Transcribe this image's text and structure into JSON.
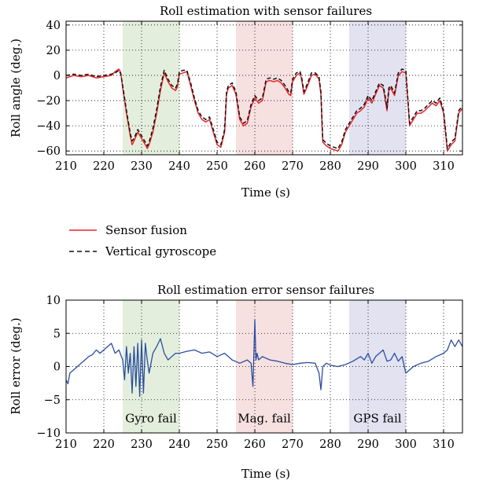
{
  "chart_data": [
    {
      "type": "line",
      "title": "Roll estimation with sensor failures",
      "xlabel": "Time (s)",
      "ylabel": "Roll angle (deg.)",
      "xlim": [
        210,
        315
      ],
      "ylim": [
        -63,
        43
      ],
      "xticks": [
        210,
        220,
        230,
        240,
        250,
        260,
        270,
        280,
        290,
        300,
        310
      ],
      "xtick_labels": [
        "210",
        "220",
        "230",
        "240",
        "250",
        "260",
        "270",
        "280",
        "290",
        "300",
        "310"
      ],
      "yticks": [
        40,
        20,
        0,
        -20,
        -40,
        -60
      ],
      "ytick_labels": [
        "40",
        "20",
        "0",
        "−20",
        "−40",
        "−60"
      ],
      "grid": true,
      "shaded_regions": [
        {
          "x0": 225,
          "x1": 240,
          "color": "#e3efdc"
        },
        {
          "x0": 255,
          "x1": 270,
          "color": "#f7e0e0"
        },
        {
          "x0": 285,
          "x1": 300,
          "color": "#e2e2f1"
        }
      ],
      "series": [
        {
          "name": "Sensor fusion",
          "color": "#e8242a",
          "dash": "solid",
          "x": [
            210,
            212,
            214,
            216,
            218,
            220,
            222,
            223,
            224,
            224.5,
            225,
            226,
            227,
            227.5,
            228,
            229,
            230,
            231,
            231.5,
            232,
            233,
            234,
            235,
            236,
            237,
            238,
            239,
            239.5,
            240,
            241,
            242,
            243,
            244,
            245,
            246,
            247,
            248,
            249,
            250,
            251,
            252,
            252.5,
            253,
            254,
            255,
            256,
            257,
            258,
            259,
            260,
            261,
            262,
            263,
            264,
            265,
            266,
            267,
            268,
            269,
            269.5,
            270,
            271,
            272,
            272.5,
            273,
            274,
            275,
            276,
            277,
            277.5,
            278,
            279,
            280,
            281,
            282,
            283,
            284,
            285,
            286,
            287,
            288,
            289,
            290,
            291,
            292,
            293,
            294,
            294.5,
            295,
            295.5,
            296,
            297,
            298,
            299,
            300,
            301,
            302,
            303,
            304,
            305,
            306,
            307,
            308,
            309,
            310,
            311,
            312,
            313,
            314,
            315
          ],
          "y": [
            -2,
            0,
            -1,
            0,
            -2,
            -1,
            0,
            3,
            5,
            2,
            -10,
            -30,
            -48,
            -55,
            -52,
            -45,
            -50,
            -55,
            -58,
            -55,
            -45,
            -30,
            -12,
            2,
            -5,
            -10,
            -12,
            -9,
            1,
            2,
            3,
            -8,
            -20,
            -30,
            -35,
            -37,
            -35,
            -45,
            -55,
            -57,
            -45,
            -15,
            -10,
            -8,
            -15,
            -35,
            -40,
            -38,
            -25,
            -18,
            -22,
            -20,
            -5,
            -4,
            -5,
            -4,
            -6,
            -10,
            -15,
            -16,
            -5,
            0,
            2,
            -5,
            -15,
            -8,
            0,
            1,
            -3,
            -15,
            -53,
            -56,
            -58,
            -59,
            -60,
            -55,
            -45,
            -40,
            -35,
            -30,
            -28,
            -25,
            -18,
            -22,
            -15,
            -8,
            -10,
            -18,
            -28,
            -12,
            -10,
            -16,
            0,
            3,
            2,
            -40,
            -35,
            -30,
            -30,
            -28,
            -25,
            -22,
            -24,
            -20,
            -30,
            -60,
            -55,
            -52,
            -30,
            -26
          ]
        },
        {
          "name": "Vertical gyroscope",
          "color": "#111111",
          "dash": "dashed",
          "x": [
            210,
            212,
            214,
            216,
            218,
            220,
            222,
            223,
            224,
            224.5,
            225,
            226,
            227,
            227.5,
            228,
            229,
            230,
            231,
            231.5,
            232,
            233,
            234,
            235,
            236,
            237,
            238,
            239,
            239.5,
            240,
            241,
            242,
            243,
            244,
            245,
            246,
            247,
            248,
            249,
            250,
            251,
            252,
            252.5,
            253,
            254,
            255,
            256,
            257,
            258,
            259,
            260,
            261,
            262,
            263,
            264,
            265,
            266,
            267,
            268,
            269,
            269.5,
            270,
            271,
            272,
            272.5,
            273,
            274,
            275,
            276,
            277,
            277.5,
            278,
            279,
            280,
            281,
            282,
            283,
            284,
            285,
            286,
            287,
            288,
            289,
            290,
            291,
            292,
            293,
            294,
            294.5,
            295,
            295.5,
            296,
            297,
            298,
            299,
            300,
            301,
            302,
            303,
            304,
            305,
            306,
            307,
            308,
            309,
            310,
            311,
            312,
            313,
            314,
            315
          ],
          "y": [
            0,
            1,
            0,
            1,
            -1,
            0,
            1,
            2,
            4,
            1,
            -8,
            -28,
            -46,
            -52,
            -50,
            -43,
            -48,
            -53,
            -56,
            -53,
            -42,
            -27,
            -9,
            4,
            -3,
            -8,
            -10,
            -7,
            3,
            4,
            4,
            -6,
            -18,
            -28,
            -33,
            -35,
            -33,
            -43,
            -53,
            -55,
            -43,
            -13,
            -8,
            -6,
            -13,
            -33,
            -38,
            -36,
            -23,
            -16,
            -20,
            -18,
            -3,
            -2,
            -3,
            -2,
            -4,
            -8,
            -13,
            -14,
            -3,
            2,
            3,
            -3,
            -13,
            -6,
            2,
            2,
            -1,
            -13,
            -51,
            -54,
            -56,
            -57,
            -58,
            -53,
            -43,
            -38,
            -33,
            -28,
            -26,
            -23,
            -16,
            -20,
            -13,
            -6,
            -8,
            -16,
            -26,
            -10,
            -8,
            -14,
            2,
            5,
            4,
            -38,
            -33,
            -28,
            -28,
            -26,
            -23,
            -20,
            -22,
            -18,
            -28,
            -58,
            -53,
            -50,
            -28,
            -24
          ]
        }
      ]
    },
    {
      "type": "line",
      "title": "Roll estimation error sensor failures",
      "xlabel": "Time (s)",
      "ylabel": "Roll error (deg.)",
      "xlim": [
        210,
        315
      ],
      "ylim": [
        -10,
        10
      ],
      "xticks": [
        210,
        220,
        230,
        240,
        250,
        260,
        270,
        280,
        290,
        300,
        310
      ],
      "xtick_labels": [
        "210",
        "220",
        "230",
        "240",
        "250",
        "260",
        "270",
        "280",
        "290",
        "300",
        "310"
      ],
      "yticks": [
        10,
        5,
        0,
        -5,
        -10
      ],
      "ytick_labels": [
        "10",
        "5",
        "0",
        "−5",
        "−10"
      ],
      "grid": true,
      "shaded_regions": [
        {
          "x0": 225,
          "x1": 240,
          "color": "#e3efdc"
        },
        {
          "x0": 255,
          "x1": 270,
          "color": "#f7e0e0"
        },
        {
          "x0": 285,
          "x1": 300,
          "color": "#e2e2f1"
        }
      ],
      "annotations": [
        {
          "text": "Gyro fail",
          "x": 232.5,
          "y": -7.8
        },
        {
          "text": "Mag. fail",
          "x": 262.5,
          "y": -7.8
        },
        {
          "text": "GPS fail",
          "x": 292.5,
          "y": -7.8
        }
      ],
      "series": [
        {
          "name": "Sensor fusion",
          "color": "#2a4ea0",
          "dash": "solid",
          "x": [
            210,
            210.5,
            211,
            212,
            213,
            214,
            215,
            216,
            217,
            218,
            219,
            220,
            221,
            222,
            223,
            224,
            225,
            225.5,
            226,
            226.5,
            227,
            227.5,
            228,
            228.5,
            229,
            229.5,
            230,
            230.5,
            231,
            231.5,
            232,
            233,
            234,
            235,
            236,
            237,
            238,
            239,
            240,
            242,
            244,
            246,
            248,
            250,
            252,
            254,
            256,
            258,
            259,
            259.5,
            260,
            260.3,
            260.6,
            261,
            262,
            264,
            266,
            268,
            270,
            272,
            274,
            276,
            277,
            277.5,
            278,
            279,
            280,
            282,
            284,
            286,
            288,
            289,
            290,
            291,
            292,
            294,
            295,
            296,
            297,
            298,
            299,
            300,
            302,
            304,
            306,
            308,
            310,
            311,
            312,
            313,
            314,
            315
          ],
          "y": [
            -2,
            -2.6,
            -1,
            -0.5,
            0,
            0.5,
            1,
            1.5,
            1.8,
            2.5,
            2,
            2.5,
            3,
            3.5,
            2,
            2.5,
            1,
            -2,
            3,
            -1,
            2,
            -4,
            3,
            -3,
            3.5,
            -4.5,
            4,
            -4,
            3.5,
            1,
            -1,
            2,
            3,
            4.2,
            2,
            1,
            1.5,
            2,
            2,
            2.3,
            2.5,
            2,
            2.2,
            1.5,
            2,
            1,
            0.5,
            1,
            0.5,
            -3,
            7,
            1,
            2,
            1,
            1.5,
            1,
            0.8,
            0.5,
            0.3,
            0.5,
            0.6,
            0.5,
            -1,
            -3.5,
            0,
            0.5,
            0.2,
            0,
            0.3,
            0.8,
            1.5,
            1,
            2,
            0.5,
            1.5,
            2.5,
            0.8,
            1,
            2,
            0.8,
            1.5,
            -1,
            0,
            0.5,
            0.8,
            1.5,
            2,
            2.5,
            4,
            3,
            4,
            3
          ]
        }
      ]
    }
  ],
  "legend": {
    "placement": "between-plots-left",
    "items": [
      {
        "label": "Sensor fusion",
        "color": "#e8242a",
        "dash": "solid"
      },
      {
        "label": "Vertical gyroscope",
        "color": "#111111",
        "dash": "dashed"
      }
    ]
  }
}
